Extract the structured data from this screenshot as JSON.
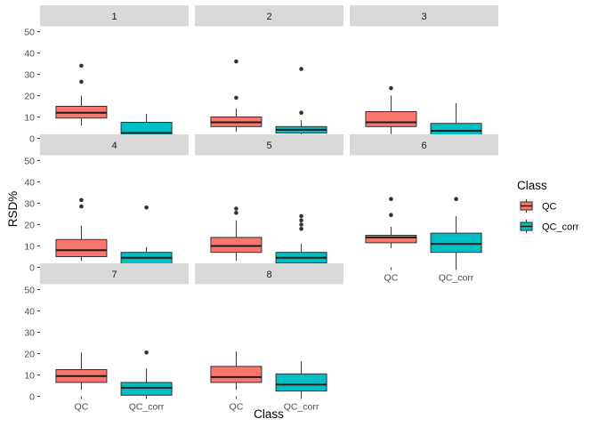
{
  "chart_data": {
    "type": "boxplot",
    "title": "",
    "xlabel": "Class",
    "ylabel": "RSD%",
    "ylim": [
      0,
      50
    ],
    "yticks": [
      0,
      10,
      20,
      30,
      40,
      50
    ],
    "categories": [
      "QC",
      "QC_corr"
    ],
    "legend": {
      "title": "Class",
      "position": "right",
      "entries": [
        {
          "label": "QC",
          "color": "#F8766D"
        },
        {
          "label": "QC_corr",
          "color": "#00BFC4"
        }
      ]
    },
    "colors": {
      "QC": "#F8766D",
      "QC_corr": "#00BFC4",
      "strip": "#D9D9D9"
    },
    "facets": [
      {
        "label": "1",
        "boxes": [
          {
            "class": "QC",
            "whisker_low": 6,
            "q1": 9.5,
            "median": 12,
            "q3": 15,
            "whisker_high": 20,
            "outliers": [
              26.5,
              34
            ]
          },
          {
            "class": "QC_corr",
            "whisker_low": 0,
            "q1": 1,
            "median": 2.5,
            "q3": 7.5,
            "whisker_high": 11.5,
            "outliers": []
          }
        ]
      },
      {
        "label": "2",
        "boxes": [
          {
            "class": "QC",
            "whisker_low": 3,
            "q1": 5.5,
            "median": 7.5,
            "q3": 10,
            "whisker_high": 14,
            "outliers": [
              19,
              36
            ]
          },
          {
            "class": "QC_corr",
            "whisker_low": 1,
            "q1": 2.5,
            "median": 4,
            "q3": 5.5,
            "whisker_high": 8.5,
            "outliers": [
              12,
              32.5
            ]
          }
        ]
      },
      {
        "label": "3",
        "boxes": [
          {
            "class": "QC",
            "whisker_low": 2,
            "q1": 5.5,
            "median": 7.5,
            "q3": 12.5,
            "whisker_high": 20,
            "outliers": [
              23.5
            ]
          },
          {
            "class": "QC_corr",
            "whisker_low": 0,
            "q1": 0.5,
            "median": 3.5,
            "q3": 7,
            "whisker_high": 16.5,
            "outliers": []
          }
        ]
      },
      {
        "label": "4",
        "boxes": [
          {
            "class": "QC",
            "whisker_low": 3,
            "q1": 5,
            "median": 8,
            "q3": 13,
            "whisker_high": 19.5,
            "outliers": [
              28.5,
              31.5
            ]
          },
          {
            "class": "QC_corr",
            "whisker_low": 0,
            "q1": 1,
            "median": 4.5,
            "q3": 7,
            "whisker_high": 9.5,
            "outliers": [
              28
            ]
          }
        ]
      },
      {
        "label": "5",
        "boxes": [
          {
            "class": "QC",
            "whisker_low": 3,
            "q1": 7,
            "median": 10,
            "q3": 14,
            "whisker_high": 22,
            "outliers": [
              25.5,
              27.5
            ]
          },
          {
            "class": "QC_corr",
            "whisker_low": 0,
            "q1": 2,
            "median": 4.5,
            "q3": 7,
            "whisker_high": 11,
            "outliers": [
              18,
              20,
              22,
              24
            ]
          }
        ]
      },
      {
        "label": "6",
        "boxes": [
          {
            "class": "QC",
            "whisker_low": 9,
            "q1": 11.5,
            "median": 14,
            "q3": 15,
            "whisker_high": 19,
            "outliers": [
              24.5,
              32
            ]
          },
          {
            "class": "QC_corr",
            "whisker_low": 0,
            "q1": 7,
            "median": 11,
            "q3": 16,
            "whisker_high": 24,
            "outliers": [
              32
            ]
          }
        ]
      },
      {
        "label": "7",
        "boxes": [
          {
            "class": "QC",
            "whisker_low": 3,
            "q1": 6.5,
            "median": 9.5,
            "q3": 12.5,
            "whisker_high": 20.5,
            "outliers": []
          },
          {
            "class": "QC_corr",
            "whisker_low": 0,
            "q1": 0.5,
            "median": 4,
            "q3": 6.5,
            "whisker_high": 13,
            "outliers": [
              20.5
            ]
          }
        ]
      },
      {
        "label": "8",
        "boxes": [
          {
            "class": "QC",
            "whisker_low": 3,
            "q1": 6.5,
            "median": 9,
            "q3": 14,
            "whisker_high": 21,
            "outliers": []
          },
          {
            "class": "QC_corr",
            "whisker_low": 0,
            "q1": 2.5,
            "median": 5.5,
            "q3": 10.5,
            "whisker_high": 16.5,
            "outliers": []
          }
        ]
      }
    ]
  }
}
